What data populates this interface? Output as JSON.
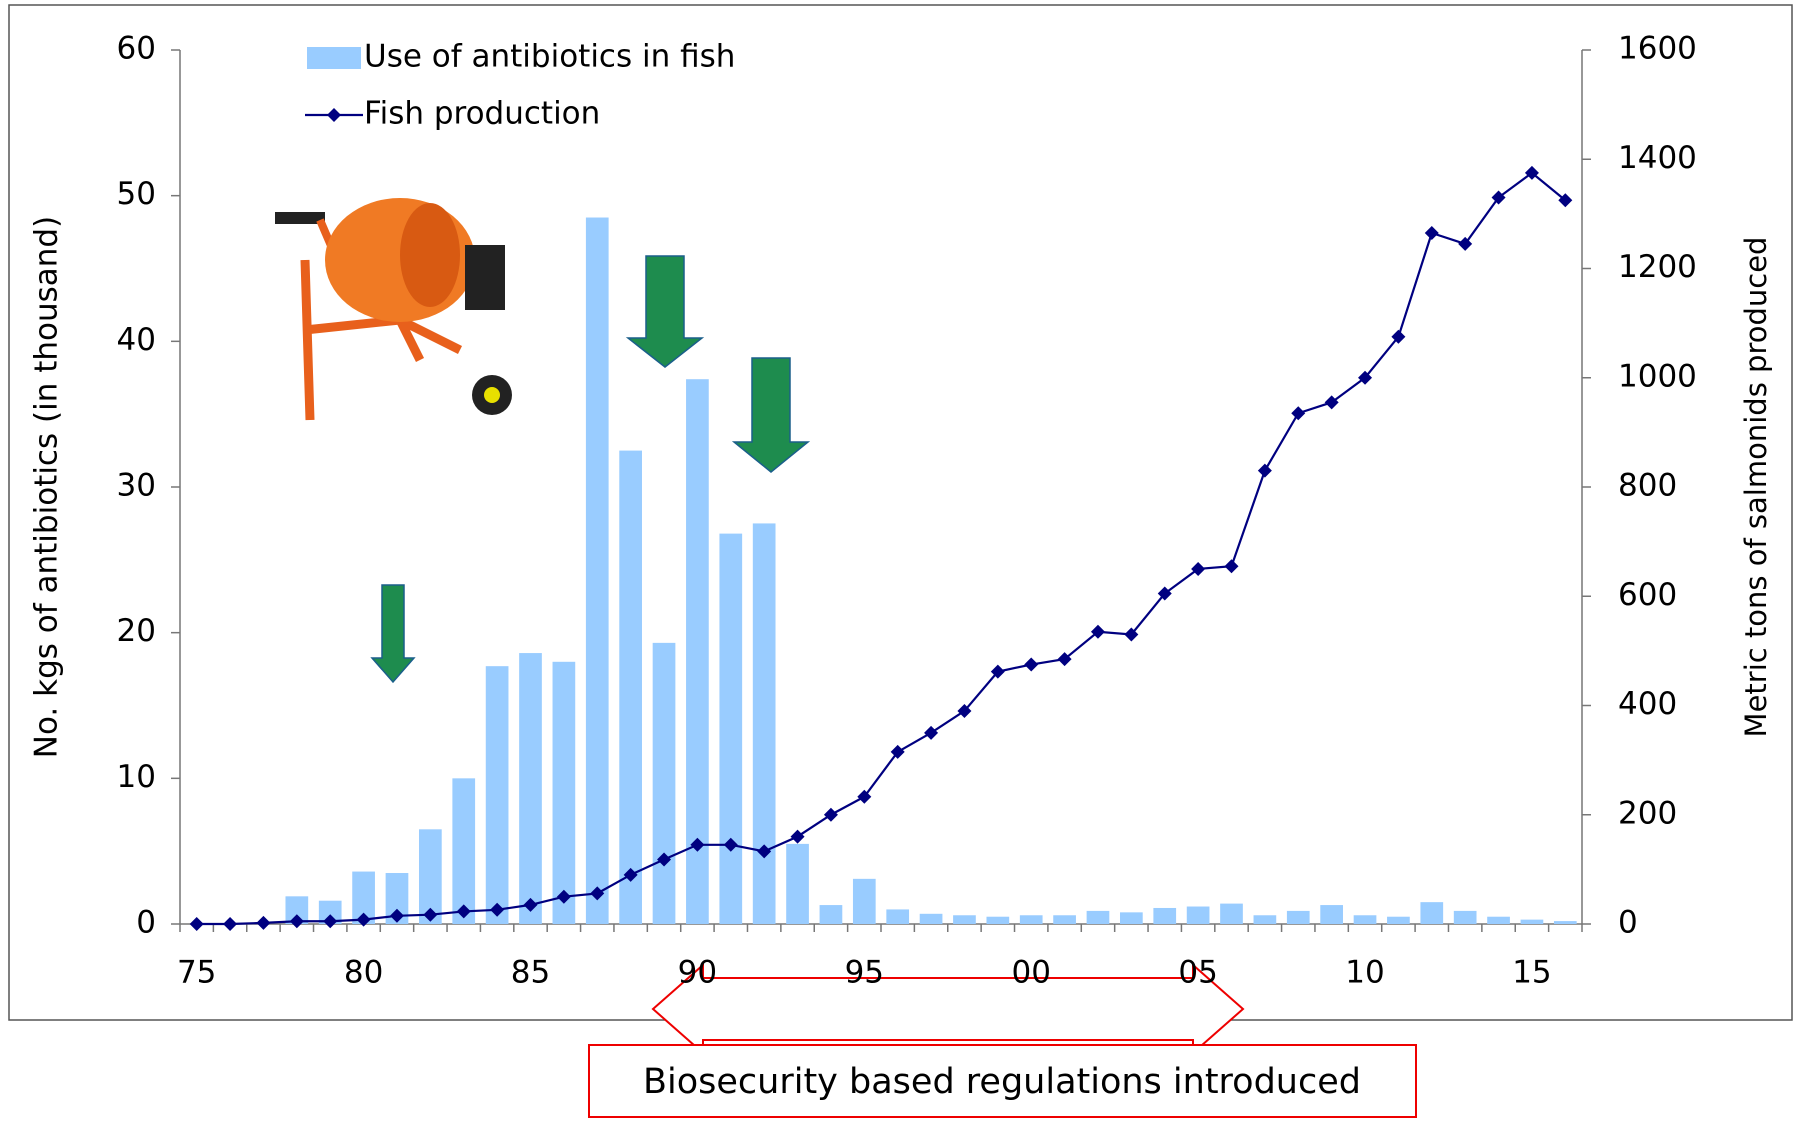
{
  "chart_data": {
    "type": "bar",
    "y_label": "No. kgs of antibiotics (in thousand)",
    "y2_label": "Metric tons of salmonids produced",
    "annotation": "Biosecurity based regulations introduced",
    "categories": [
      "75",
      null,
      null,
      null,
      null,
      "80",
      null,
      null,
      null,
      null,
      "85",
      null,
      null,
      null,
      null,
      "90",
      null,
      null,
      null,
      null,
      "95",
      null,
      null,
      null,
      null,
      "00",
      null,
      null,
      null,
      null,
      "05",
      null,
      null,
      null,
      null,
      "10",
      null,
      null,
      null,
      null,
      "15",
      null
    ],
    "series": [
      {
        "name": "Use of antibiotics in fish",
        "type": "bar",
        "color": "#99ccff",
        "values": [
          0,
          0,
          0,
          1.9,
          1.6,
          3.6,
          3.5,
          6.5,
          10,
          17.7,
          18.6,
          18,
          48.5,
          32.5,
          19.3,
          37.4,
          26.8,
          27.5,
          5.5,
          1.3,
          3.1,
          1.0,
          0.7,
          0.6,
          0.5,
          0.6,
          0.6,
          0.9,
          0.8,
          1.1,
          1.2,
          1.4,
          0.6,
          0.9,
          1.3,
          0.6,
          0.5,
          1.5,
          0.9,
          0.5,
          0.3,
          0.2
        ]
      },
      {
        "name": "Fish production",
        "type": "line",
        "color": "#000080",
        "axis": "y2",
        "values": [
          0,
          0,
          2,
          5,
          5,
          8,
          15,
          17,
          23,
          26,
          35,
          50,
          56,
          90,
          118,
          145,
          145,
          133,
          160,
          200,
          233,
          315,
          350,
          390,
          462,
          475,
          485,
          535,
          530,
          605,
          650,
          655,
          830,
          935,
          955,
          1000,
          1075,
          1265,
          1245,
          1330,
          1375,
          1325
        ]
      }
    ],
    "ylim": [
      0,
      60
    ],
    "yticks": [
      0,
      10,
      20,
      30,
      40,
      50,
      60
    ],
    "y2lim": [
      0,
      1600
    ],
    "y2ticks": [
      0,
      200,
      400,
      600,
      800,
      1000,
      1200,
      1400,
      1600
    ]
  }
}
